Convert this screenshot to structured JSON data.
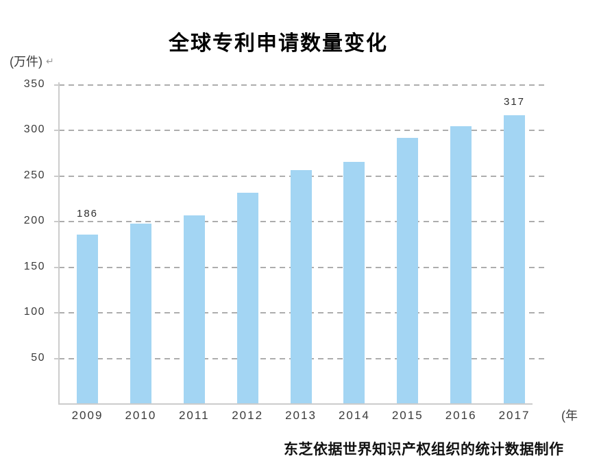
{
  "chart": {
    "title": "全球专利申请数量变化",
    "y_unit": "(万件)",
    "return_mark": "↵",
    "x_unit": "(年",
    "source_note": "东芝依据世界知识产权组织的统计数据制作"
  },
  "chart_data": {
    "type": "bar",
    "title": "全球专利申请数量变化",
    "categories": [
      "2009",
      "2010",
      "2011",
      "2012",
      "2013",
      "2014",
      "2015",
      "2016",
      "2017"
    ],
    "values": [
      186,
      198,
      207,
      232,
      257,
      266,
      292,
      305,
      317
    ],
    "data_labels": [
      {
        "category": "2009",
        "label": "186"
      },
      {
        "category": "2017",
        "label": "317"
      }
    ],
    "ylabel": "(万件)",
    "xlabel": "(年",
    "ylim": [
      0,
      350
    ],
    "yticks": [
      50,
      100,
      150,
      200,
      250,
      300,
      350
    ],
    "grid": "horizontal-dashed",
    "legend": "none",
    "bar_color": "#A3D5F3",
    "source": "东芝依据世界知识产权组织的统计数据制作"
  },
  "colors": {
    "bar": "#A3D5F3",
    "grid": "#ADADAD",
    "axis": "#CCCCCC",
    "text": "#3A3A3A",
    "title": "#000000"
  }
}
